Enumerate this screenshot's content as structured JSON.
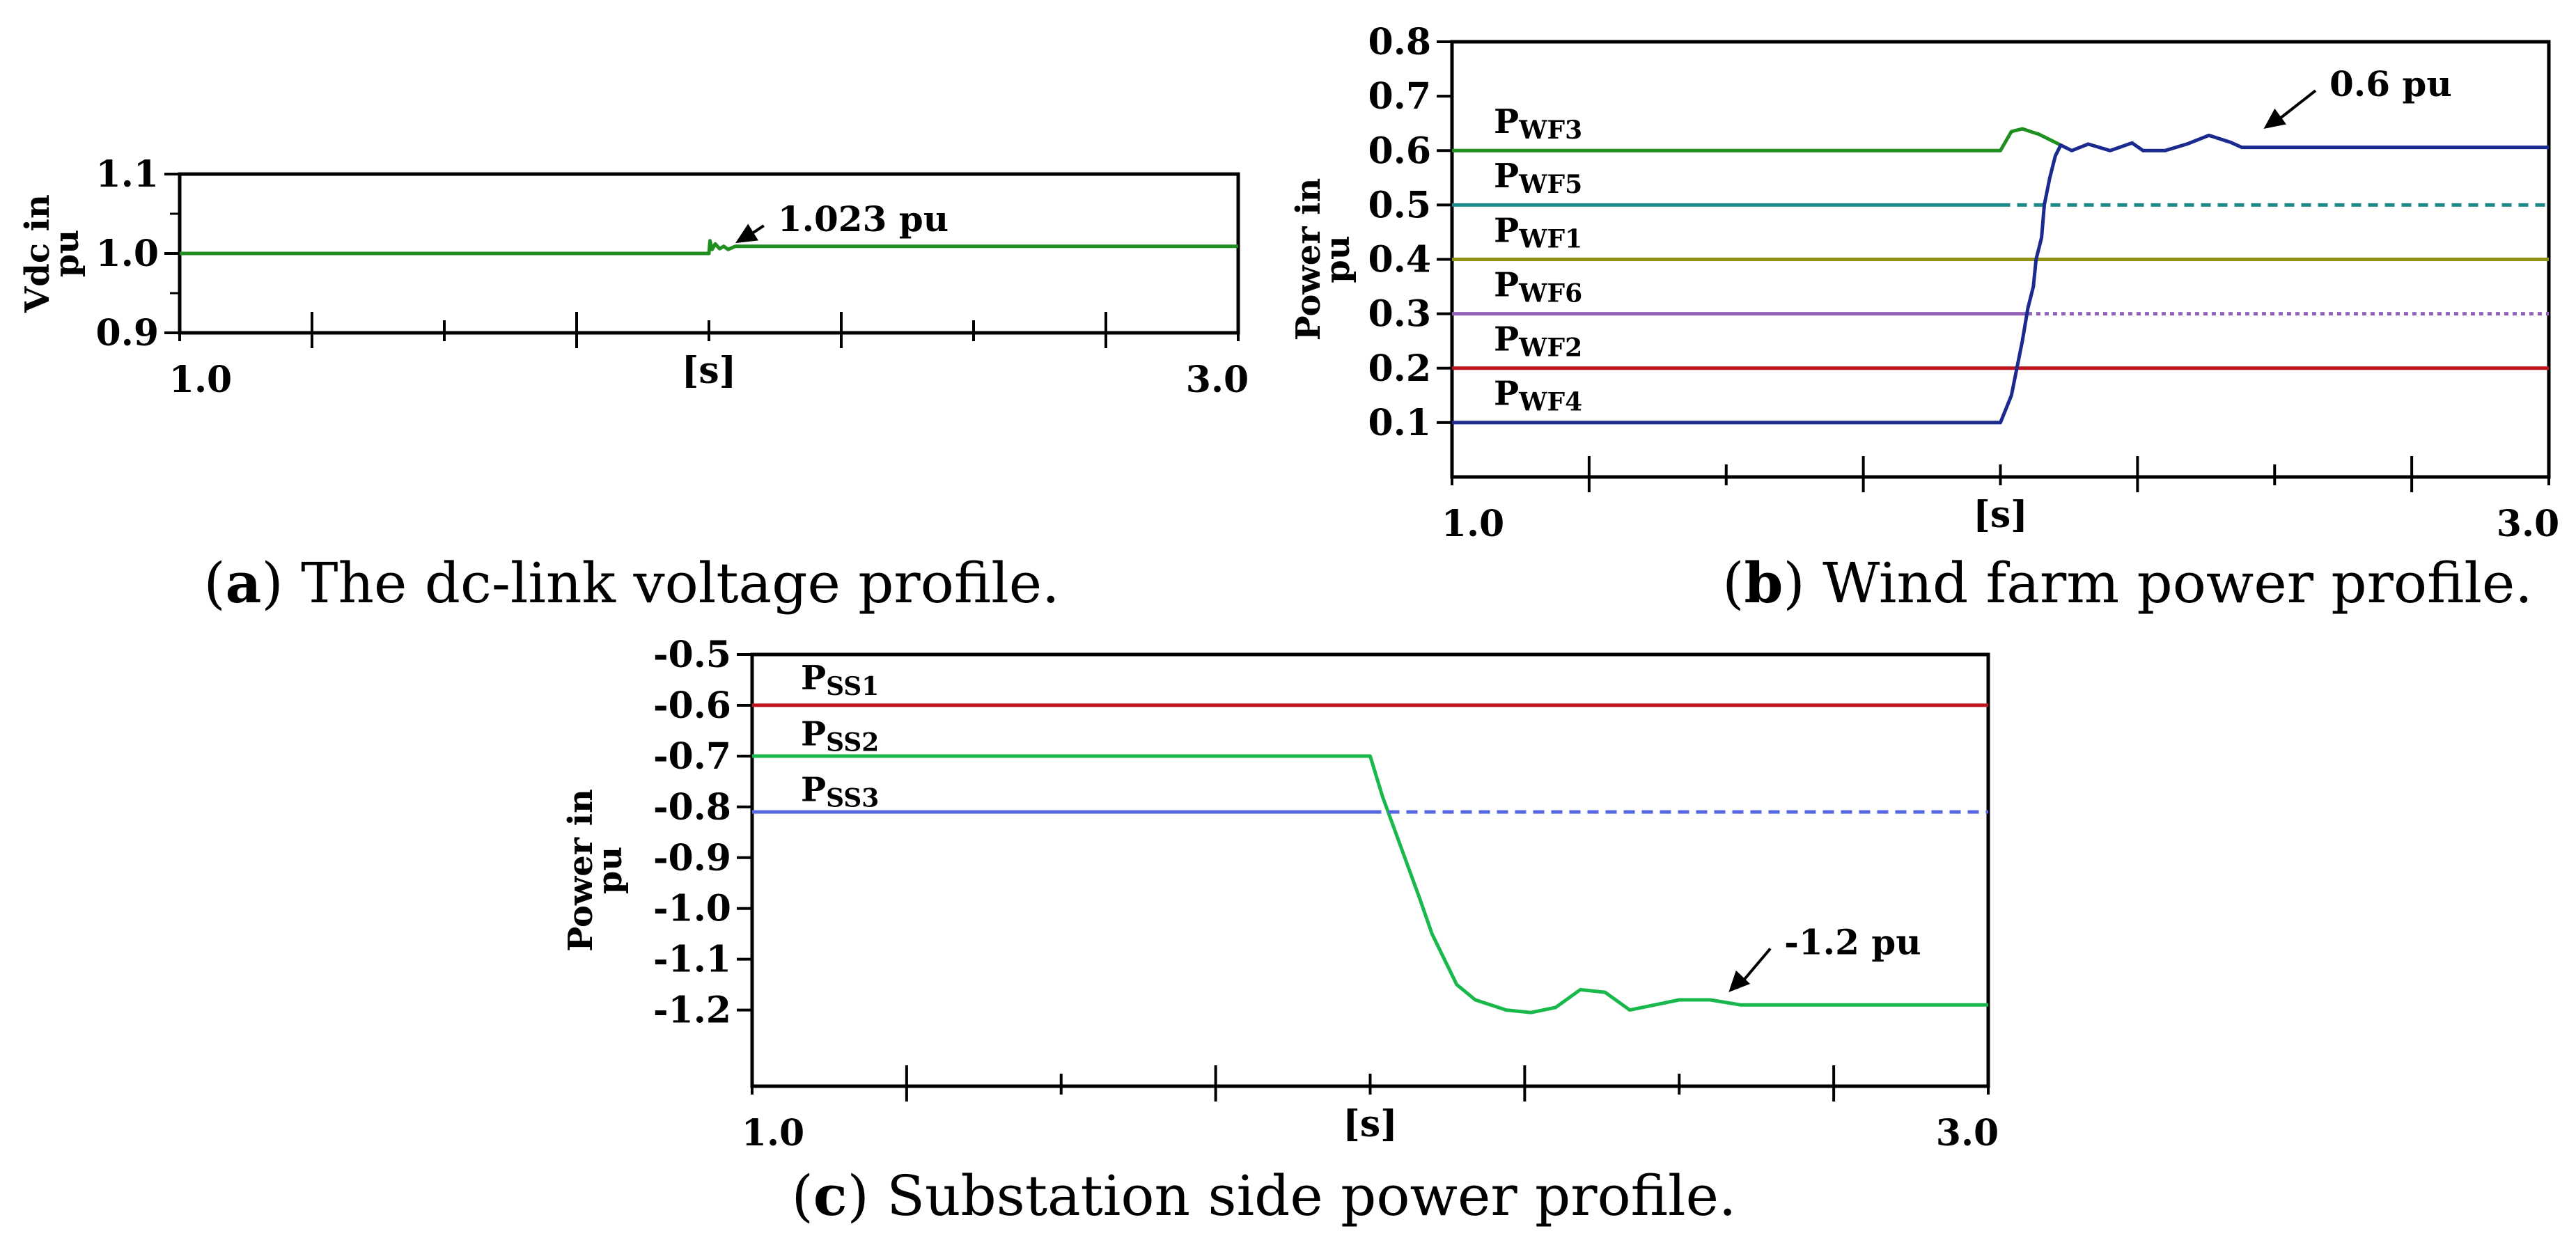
{
  "chart_data": [
    {
      "type": "line",
      "panel": "a",
      "title": "The dc-link voltage profile.",
      "caption_letter": "a",
      "ylabel": [
        "Vdc in",
        "pu"
      ],
      "xlabel": "[s]",
      "xlim": [
        1.0,
        3.0
      ],
      "ylim": [
        0.9,
        1.1
      ],
      "yticks": [
        "0.9",
        "1.0",
        "1.1"
      ],
      "xtick_labels": [
        "1.0",
        "3.0"
      ],
      "colors": {
        "vdc": "#1f8f1f"
      },
      "series": [
        {
          "name": "Vdc",
          "color": "#1f8f1f",
          "dash": "",
          "points": [
            [
              1.0,
              1.0
            ],
            [
              1.98,
              1.0
            ],
            [
              2.0,
              1.0
            ],
            [
              2.002,
              1.016
            ],
            [
              2.006,
              1.005
            ],
            [
              2.012,
              1.012
            ],
            [
              2.02,
              1.006
            ],
            [
              2.028,
              1.009
            ],
            [
              2.036,
              1.005
            ],
            [
              2.05,
              1.009
            ],
            [
              2.1,
              1.009
            ],
            [
              3.0,
              1.009
            ]
          ]
        }
      ],
      "annotations": [
        {
          "text": "1.023 pu",
          "x": 2.13,
          "y": 1.028,
          "arrow_to": [
            2.05,
            1.013
          ]
        }
      ]
    },
    {
      "type": "line",
      "panel": "b",
      "title": "Wind farm power profile.",
      "caption_letter": "b",
      "ylabel": [
        "Power in",
        "pu"
      ],
      "xlabel": "[s]",
      "xlim": [
        1.0,
        3.0
      ],
      "ylim": [
        0.0,
        0.8
      ],
      "yticks": [
        "0.1",
        "0.2",
        "0.3",
        "0.4",
        "0.5",
        "0.6",
        "0.7",
        "0.8"
      ],
      "xtick_labels": [
        "1.0",
        "3.0"
      ],
      "series": [
        {
          "name": "PWF3",
          "color": "#1f8f1f",
          "dash": "",
          "points": [
            [
              1.0,
              0.6
            ],
            [
              2.0,
              0.6
            ],
            [
              2.02,
              0.635
            ],
            [
              2.04,
              0.64
            ],
            [
              2.07,
              0.63
            ],
            [
              2.1,
              0.615
            ],
            [
              2.11,
              0.61
            ]
          ]
        },
        {
          "name": "PWF5",
          "color": "#1a8a8a",
          "dash": "",
          "points": [
            [
              1.0,
              0.5
            ],
            [
              2.0,
              0.5
            ]
          ]
        },
        {
          "name": "PWF5-after",
          "color": "#1a8a8a",
          "dash": "14,10",
          "points": [
            [
              2.0,
              0.5
            ],
            [
              3.0,
              0.5
            ]
          ]
        },
        {
          "name": "PWF1",
          "color": "#8f8f10",
          "dash": "",
          "points": [
            [
              1.0,
              0.4
            ],
            [
              3.0,
              0.4
            ]
          ]
        },
        {
          "name": "PWF6",
          "color": "#8f62b8",
          "dash": "",
          "points": [
            [
              1.0,
              0.3
            ],
            [
              2.05,
              0.3
            ]
          ]
        },
        {
          "name": "PWF6-after",
          "color": "#8f62b8",
          "dash": "6,6",
          "points": [
            [
              2.05,
              0.3
            ],
            [
              3.0,
              0.3
            ]
          ]
        },
        {
          "name": "PWF2",
          "color": "#c0141c",
          "dash": "",
          "points": [
            [
              1.0,
              0.2
            ],
            [
              3.0,
              0.2
            ]
          ]
        },
        {
          "name": "PWF4",
          "color": "#1b2a8f",
          "dash": "",
          "points": [
            [
              1.0,
              0.1
            ],
            [
              2.0,
              0.1
            ],
            [
              2.02,
              0.15
            ],
            [
              2.04,
              0.25
            ],
            [
              2.05,
              0.31
            ],
            [
              2.06,
              0.35
            ],
            [
              2.065,
              0.4
            ],
            [
              2.075,
              0.44
            ],
            [
              2.08,
              0.5
            ],
            [
              2.09,
              0.55
            ],
            [
              2.1,
              0.59
            ],
            [
              2.11,
              0.61
            ],
            [
              2.13,
              0.6
            ],
            [
              2.16,
              0.612
            ],
            [
              2.2,
              0.6
            ],
            [
              2.24,
              0.614
            ],
            [
              2.26,
              0.6
            ],
            [
              2.3,
              0.6
            ],
            [
              2.34,
              0.612
            ],
            [
              2.38,
              0.628
            ],
            [
              2.42,
              0.615
            ],
            [
              2.44,
              0.606
            ],
            [
              3.0,
              0.606
            ]
          ]
        }
      ],
      "series_labels": [
        {
          "base": "P",
          "sub": "WF3",
          "y": 0.645
        },
        {
          "base": "P",
          "sub": "WF5",
          "y": 0.545
        },
        {
          "base": "P",
          "sub": "WF1",
          "y": 0.445
        },
        {
          "base": "P",
          "sub": "WF6",
          "y": 0.345
        },
        {
          "base": "P",
          "sub": "WF2",
          "y": 0.245
        },
        {
          "base": "P",
          "sub": "WF4",
          "y": 0.145
        }
      ],
      "annotations": [
        {
          "text": "0.6 pu",
          "x": 2.6,
          "y": 0.7,
          "arrow_to": [
            2.48,
            0.64
          ]
        }
      ]
    },
    {
      "type": "line",
      "panel": "c",
      "title": "Substation side power profile.",
      "caption_letter": "c",
      "ylabel": [
        "Power in",
        "pu"
      ],
      "xlabel": "[s]",
      "xlim": [
        1.0,
        3.0
      ],
      "ylim": [
        -1.35,
        -0.5
      ],
      "yticks": [
        "-0.5",
        "-0.6",
        "-0.7",
        "-0.8",
        "-0.9",
        "-1.0",
        "-1.1",
        "-1.2"
      ],
      "xtick_labels": [
        "1.0",
        "3.0"
      ],
      "series": [
        {
          "name": "PSS1",
          "color": "#c0141c",
          "dash": "",
          "points": [
            [
              1.0,
              -0.6
            ],
            [
              3.0,
              -0.6
            ]
          ]
        },
        {
          "name": "PSS2",
          "color": "#19b84a",
          "dash": "",
          "points": [
            [
              1.0,
              -0.7
            ],
            [
              2.0,
              -0.7
            ],
            [
              2.02,
              -0.78
            ],
            [
              2.05,
              -0.88
            ],
            [
              2.08,
              -0.98
            ],
            [
              2.1,
              -1.05
            ],
            [
              2.12,
              -1.1
            ],
            [
              2.14,
              -1.15
            ],
            [
              2.17,
              -1.18
            ],
            [
              2.22,
              -1.2
            ],
            [
              2.26,
              -1.205
            ],
            [
              2.3,
              -1.195
            ],
            [
              2.34,
              -1.16
            ],
            [
              2.38,
              -1.165
            ],
            [
              2.42,
              -1.2
            ],
            [
              2.46,
              -1.19
            ],
            [
              2.5,
              -1.18
            ],
            [
              2.55,
              -1.18
            ],
            [
              2.6,
              -1.19
            ],
            [
              3.0,
              -1.19
            ]
          ]
        },
        {
          "name": "PSS3",
          "color": "#5569e0",
          "dash": "",
          "points": [
            [
              1.0,
              -0.81
            ],
            [
              2.0,
              -0.81
            ]
          ]
        },
        {
          "name": "PSS3-after",
          "color": "#5569e0",
          "dash": "16,10",
          "points": [
            [
              2.0,
              -0.81
            ],
            [
              3.0,
              -0.81
            ]
          ]
        }
      ],
      "series_labels": [
        {
          "base": "P",
          "sub": "SS1",
          "y": -0.555
        },
        {
          "base": "P",
          "sub": "SS2",
          "y": -0.665
        },
        {
          "base": "P",
          "sub": "SS3",
          "y": -0.775
        }
      ],
      "annotations": [
        {
          "text": "-1.2 pu",
          "x": 2.67,
          "y": -1.09,
          "arrow_to": [
            2.58,
            -1.165
          ]
        }
      ]
    }
  ]
}
